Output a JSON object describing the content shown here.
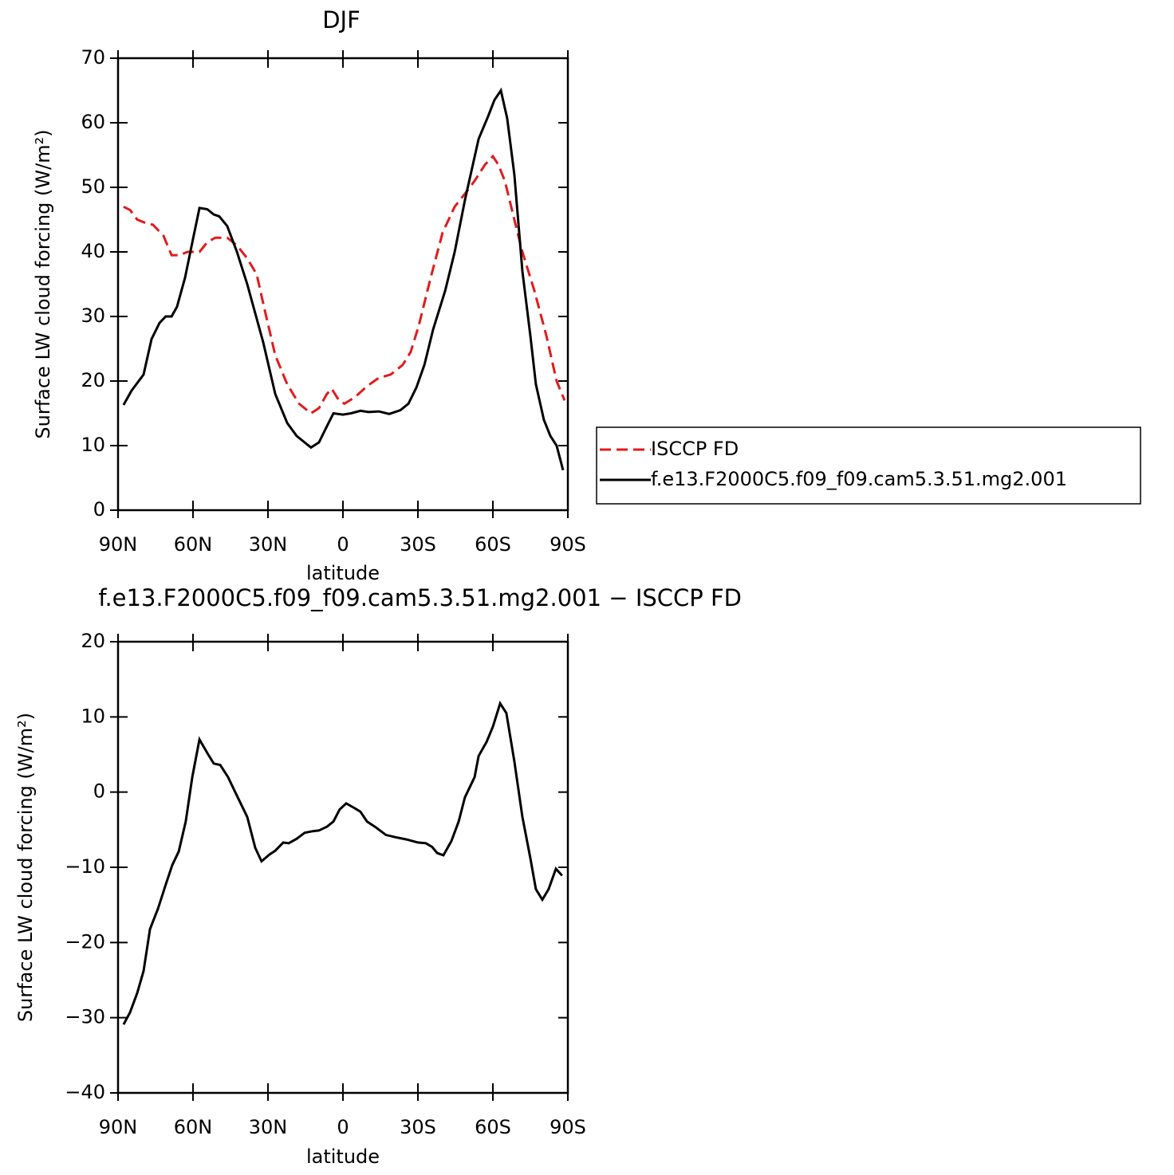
{
  "chart_data": [
    {
      "type": "line",
      "title": "DJF",
      "xlabel": "latitude",
      "ylabel": "Surface LW cloud forcing (W/m²)",
      "xlim": [
        90,
        -90
      ],
      "xticks": [
        {
          "value": 90,
          "label": "90N"
        },
        {
          "value": 60,
          "label": "60N"
        },
        {
          "value": 30,
          "label": "30N"
        },
        0,
        {
          "value": -30,
          "label": "30S"
        },
        {
          "value": -60,
          "label": "60S"
        },
        {
          "value": -90,
          "label": "90S"
        }
      ],
      "ylim": [
        0,
        70
      ],
      "yticks": [
        0,
        10,
        20,
        30,
        40,
        50,
        60,
        70
      ],
      "legend": "right",
      "series": [
        {
          "name": "ISCCP FD",
          "color": "#e31a1c",
          "linestyle": "dashed",
          "x": [
            87.8,
            85.2,
            82.3,
            79.1,
            76.0,
            71.8,
            68.6,
            65.4,
            62.2,
            57.4,
            54.3,
            51.1,
            46.3,
            42.4,
            38.3,
            34.5,
            31.3,
            27.1,
            22.3,
            17.6,
            12.8,
            9.6,
            6.4,
            4.5,
            1.6,
            -0.6,
            -4.8,
            -9.6,
            -14.4,
            -19.1,
            -23.9,
            -27.1,
            -30.3,
            -35.1,
            -39.9,
            -44.7,
            -48.8,
            -52.7,
            -56.8,
            -60.0,
            -62.2,
            -64.8,
            -68.6,
            -71.8,
            -76.6,
            -81.4,
            -85.5,
            -88.7
          ],
          "values": [
            47,
            46.5,
            45,
            44.5,
            44.2,
            42.5,
            39.5,
            39.5,
            40,
            40,
            41.5,
            42.2,
            42.2,
            41,
            39,
            36.5,
            31,
            24,
            19.5,
            16.5,
            15,
            15.8,
            18,
            18.8,
            17,
            16.5,
            17.5,
            19.2,
            20.5,
            21,
            22.5,
            24.5,
            28.5,
            36,
            43,
            47,
            49,
            51,
            53.5,
            54.8,
            53.5,
            51,
            45,
            40,
            34,
            27,
            20,
            17
          ]
        },
        {
          "name": "f.e13.F2000C5.f09_f09.cam5.3.51.mg2.001",
          "color": "#000000",
          "linestyle": "solid",
          "x": [
            87.8,
            84.6,
            79.8,
            76.6,
            73.4,
            70.9,
            68.6,
            66.4,
            63.2,
            60.0,
            57.4,
            54.3,
            51.7,
            49.5,
            46.3,
            42.4,
            38.3,
            31.9,
            27.1,
            22.3,
            18.5,
            12.8,
            9.6,
            6.4,
            3.8,
            0,
            -3.2,
            -7.0,
            -10.2,
            -14.4,
            -18.5,
            -23.0,
            -26.2,
            -29.4,
            -32.6,
            -36.1,
            -40.9,
            -44.7,
            -48.8,
            -54.3,
            -58.1,
            -60.6,
            -63.2,
            -65.7,
            -68.6,
            -71.8,
            -75.0,
            -77.2,
            -80.4,
            -83.0,
            -85.5,
            -88.1
          ],
          "values": [
            16.3,
            18.5,
            21,
            26.5,
            29,
            30,
            30,
            31.5,
            36,
            42,
            46.8,
            46.6,
            45.8,
            45.5,
            44,
            40,
            35,
            26,
            18,
            13.5,
            11.5,
            9.7,
            10.5,
            13,
            15,
            14.8,
            15,
            15.4,
            15.2,
            15.3,
            14.9,
            15.5,
            16.5,
            19,
            22.5,
            28,
            34,
            40,
            48,
            57.5,
            61,
            63.5,
            65,
            60.7,
            52,
            37,
            27,
            19.5,
            14,
            11.5,
            10,
            6.2
          ]
        }
      ]
    },
    {
      "type": "line",
      "title": "f.e13.F2000C5.f09_f09.cam5.3.51.mg2.001 − ISCCP FD",
      "xlabel": "latitude",
      "ylabel": "Surface LW cloud forcing (W/m²)",
      "xlim": [
        90,
        -90
      ],
      "xticks": [
        {
          "value": 90,
          "label": "90N"
        },
        {
          "value": 60,
          "label": "60N"
        },
        {
          "value": 30,
          "label": "30N"
        },
        0,
        {
          "value": -30,
          "label": "30S"
        },
        {
          "value": -60,
          "label": "60S"
        },
        {
          "value": -90,
          "label": "90S"
        }
      ],
      "ylim": [
        -40,
        20
      ],
      "yticks": [
        {
          "value": -40,
          "label": "−40"
        },
        {
          "value": -30,
          "label": "−30"
        },
        {
          "value": -20,
          "label": "−20"
        },
        {
          "value": -10,
          "label": "−10"
        },
        0,
        10,
        20
      ],
      "series": [
        {
          "color": "#000000",
          "linestyle": "solid",
          "x": [
            87.8,
            85.2,
            82.3,
            79.8,
            77.2,
            74.0,
            70.9,
            68.3,
            65.7,
            62.9,
            60.3,
            57.4,
            54.3,
            51.7,
            49.1,
            46.0,
            42.1,
            38.3,
            35.1,
            32.6,
            29.4,
            27.1,
            23.9,
            21.7,
            18.5,
            15.3,
            12.1,
            9.6,
            6.4,
            3.8,
            1.3,
            -1.3,
            -4.5,
            -7.0,
            -9.6,
            -12.8,
            -17.2,
            -21.1,
            -25.5,
            -30.0,
            -33.2,
            -35.7,
            -37.7,
            -40.2,
            -43.4,
            -46.3,
            -48.8,
            -52.7,
            -54.3,
            -57.5,
            -60.0,
            -62.9,
            -65.4,
            -68.6,
            -71.8,
            -75.0,
            -77.2,
            -79.8,
            -82.3,
            -85.2,
            -87.7
          ],
          "values": [
            -30.9,
            -29.3,
            -26.7,
            -23.8,
            -18.2,
            -15.5,
            -12.3,
            -9.7,
            -7.9,
            -3.9,
            2.0,
            7.0,
            5.2,
            3.8,
            3.6,
            2.0,
            -0.7,
            -3.3,
            -7.4,
            -9.2,
            -8.3,
            -7.8,
            -6.7,
            -6.8,
            -6.2,
            -5.4,
            -5.2,
            -5.1,
            -4.6,
            -3.9,
            -2.3,
            -1.5,
            -2.1,
            -2.6,
            -3.9,
            -4.6,
            -5.7,
            -6.0,
            -6.3,
            -6.7,
            -6.8,
            -7.3,
            -8.1,
            -8.4,
            -6.5,
            -3.9,
            -0.7,
            2.0,
            4.8,
            6.7,
            8.7,
            11.8,
            10.5,
            4.1,
            -3.3,
            -8.8,
            -12.9,
            -14.3,
            -12.9,
            -10.2,
            -11.1
          ]
        }
      ]
    }
  ]
}
